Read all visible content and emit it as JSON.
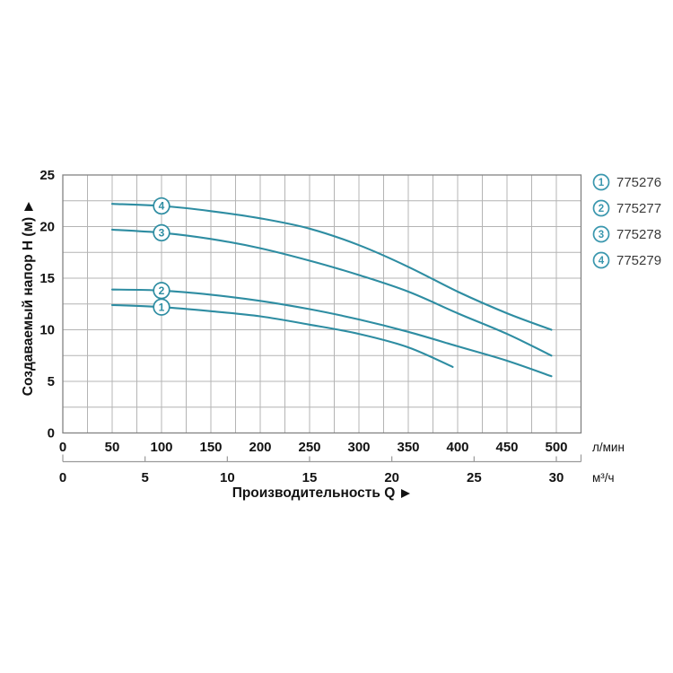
{
  "chart_data": {
    "type": "line",
    "title": "",
    "xlabel": "Производительность Q",
    "ylabel": "Создаваемый напор H (м)",
    "legend_position": "right",
    "grid": true,
    "x_axis": {
      "primary_unit": "л/мин",
      "secondary_unit": "м³/ч",
      "primary_ticks": [
        0,
        50,
        100,
        150,
        200,
        250,
        300,
        350,
        400,
        450,
        500
      ],
      "secondary_ticks": [
        0,
        5,
        10,
        15,
        20,
        25,
        30
      ],
      "primary_range": [
        0,
        525
      ],
      "grid_step_lmin": 25
    },
    "y_axis": {
      "ticks": [
        0,
        5,
        10,
        15,
        20,
        25
      ],
      "range": [
        0,
        25
      ],
      "grid_step": 2.5
    },
    "marker_at_q_lmin": 100,
    "series": [
      {
        "marker": "1",
        "name": "775276",
        "q_lmin": [
          50,
          100,
          150,
          200,
          250,
          300,
          350,
          395
        ],
        "h_m": [
          12.4,
          12.2,
          11.8,
          11.3,
          10.5,
          9.6,
          8.3,
          6.4
        ]
      },
      {
        "marker": "2",
        "name": "775277",
        "q_lmin": [
          50,
          100,
          150,
          200,
          250,
          300,
          350,
          400,
          450,
          495
        ],
        "h_m": [
          13.9,
          13.8,
          13.4,
          12.8,
          12.0,
          11.0,
          9.8,
          8.4,
          7.0,
          5.5
        ]
      },
      {
        "marker": "3",
        "name": "775278",
        "q_lmin": [
          50,
          100,
          150,
          200,
          250,
          300,
          350,
          400,
          450,
          495
        ],
        "h_m": [
          19.7,
          19.4,
          18.8,
          17.9,
          16.7,
          15.3,
          13.7,
          11.6,
          9.6,
          7.5
        ]
      },
      {
        "marker": "4",
        "name": "775279",
        "q_lmin": [
          50,
          100,
          150,
          200,
          250,
          300,
          350,
          400,
          450,
          495
        ],
        "h_m": [
          22.2,
          22.0,
          21.5,
          20.8,
          19.8,
          18.2,
          16.1,
          13.7,
          11.6,
          10.0
        ]
      }
    ]
  },
  "icons": {
    "x_axis_arrow": "right-triangle",
    "y_axis_arrow": "up-triangle"
  },
  "colors": {
    "curve": "#2e8da2",
    "legend_accent": "#3a97ae",
    "grid": "#b4b4b4",
    "plot_border": "#828282",
    "secondary_axis": "#9a9a9a",
    "tick_text": "#121212",
    "legend_text": "#3a3a3a",
    "background": "#ffffff"
  }
}
